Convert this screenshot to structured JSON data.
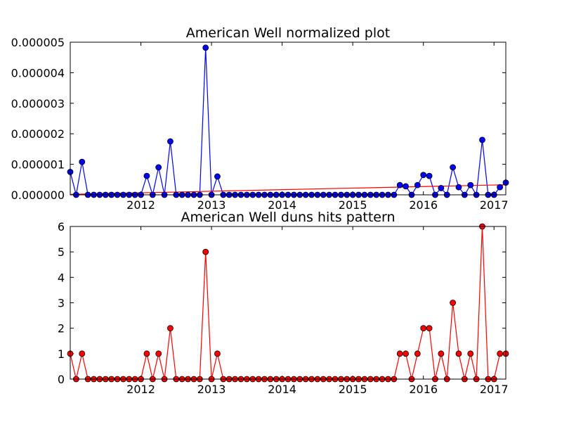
{
  "chart_data": [
    {
      "type": "line",
      "title": "American Well normalized plot",
      "x_dates": [
        "2011-01",
        "2011-02",
        "2011-03",
        "2011-04",
        "2011-05",
        "2011-06",
        "2011-07",
        "2011-08",
        "2011-09",
        "2011-10",
        "2011-11",
        "2011-12",
        "2012-01",
        "2012-02",
        "2012-03",
        "2012-04",
        "2012-05",
        "2012-06",
        "2012-07",
        "2012-08",
        "2012-09",
        "2012-10",
        "2012-11",
        "2012-12",
        "2013-01",
        "2013-02",
        "2013-03",
        "2013-04",
        "2013-05",
        "2013-06",
        "2013-07",
        "2013-08",
        "2013-09",
        "2013-10",
        "2013-11",
        "2013-12",
        "2014-01",
        "2014-02",
        "2014-03",
        "2014-04",
        "2014-05",
        "2014-06",
        "2014-07",
        "2014-08",
        "2014-09",
        "2014-10",
        "2014-11",
        "2014-12",
        "2015-01",
        "2015-02",
        "2015-03",
        "2015-04",
        "2015-05",
        "2015-06",
        "2015-07",
        "2015-08",
        "2015-09",
        "2015-10",
        "2015-11",
        "2015-12",
        "2016-01",
        "2016-02",
        "2016-03",
        "2016-04",
        "2016-05",
        "2016-06",
        "2016-07",
        "2016-08",
        "2016-09",
        "2016-10",
        "2016-11",
        "2016-12",
        "2017-01",
        "2017-02",
        "2017-03"
      ],
      "series": [
        {
          "color": "#0000ff",
          "marker_color": "#0000ff",
          "values": [
            7.5e-07,
            0,
            1.08e-06,
            0,
            0,
            0,
            0,
            0,
            0,
            0,
            0,
            0,
            0,
            6.2e-07,
            0,
            9e-07,
            0,
            1.75e-06,
            0,
            0,
            0,
            0,
            0,
            4.82e-06,
            0,
            6e-07,
            0,
            0,
            0,
            0,
            0,
            0,
            0,
            0,
            0,
            0,
            0,
            0,
            0,
            0,
            0,
            0,
            0,
            0,
            0,
            0,
            0,
            0,
            0,
            0,
            0,
            0,
            0,
            0,
            0,
            0,
            3.2e-07,
            2.8e-07,
            0,
            3.2e-07,
            6.5e-07,
            6.2e-07,
            0,
            2.2e-07,
            0,
            9e-07,
            2.5e-07,
            0,
            3.2e-07,
            0,
            1.8e-06,
            0,
            0,
            2.5e-07,
            4e-07
          ]
        }
      ],
      "trendline": {
        "color": "#ff0000",
        "start": 1.5e-08,
        "end": 3.3e-07
      },
      "ylim": [
        0,
        5e-06
      ],
      "yticks": [
        "0.000000",
        "0.000001",
        "0.000002",
        "0.000003",
        "0.000004",
        "0.000005"
      ],
      "xticks": [
        "2012",
        "2013",
        "2014",
        "2015",
        "2016",
        "2017"
      ],
      "xlim": [
        "2011-01",
        "2017-03"
      ],
      "grid": false
    },
    {
      "type": "line",
      "title": "American Well duns hits pattern",
      "x_dates": [
        "2011-01",
        "2011-02",
        "2011-03",
        "2011-04",
        "2011-05",
        "2011-06",
        "2011-07",
        "2011-08",
        "2011-09",
        "2011-10",
        "2011-11",
        "2011-12",
        "2012-01",
        "2012-02",
        "2012-03",
        "2012-04",
        "2012-05",
        "2012-06",
        "2012-07",
        "2012-08",
        "2012-09",
        "2012-10",
        "2012-11",
        "2012-12",
        "2013-01",
        "2013-02",
        "2013-03",
        "2013-04",
        "2013-05",
        "2013-06",
        "2013-07",
        "2013-08",
        "2013-09",
        "2013-10",
        "2013-11",
        "2013-12",
        "2014-01",
        "2014-02",
        "2014-03",
        "2014-04",
        "2014-05",
        "2014-06",
        "2014-07",
        "2014-08",
        "2014-09",
        "2014-10",
        "2014-11",
        "2014-12",
        "2015-01",
        "2015-02",
        "2015-03",
        "2015-04",
        "2015-05",
        "2015-06",
        "2015-07",
        "2015-08",
        "2015-09",
        "2015-10",
        "2015-11",
        "2015-12",
        "2016-01",
        "2016-02",
        "2016-03",
        "2016-04",
        "2016-05",
        "2016-06",
        "2016-07",
        "2016-08",
        "2016-09",
        "2016-10",
        "2016-11",
        "2016-12",
        "2017-01",
        "2017-02",
        "2017-03"
      ],
      "series": [
        {
          "color": "#ff0000",
          "marker_color": "#ff0000",
          "values": [
            1,
            0,
            1,
            0,
            0,
            0,
            0,
            0,
            0,
            0,
            0,
            0,
            0,
            1,
            0,
            1,
            0,
            2,
            0,
            0,
            0,
            0,
            0,
            5,
            0,
            1,
            0,
            0,
            0,
            0,
            0,
            0,
            0,
            0,
            0,
            0,
            0,
            0,
            0,
            0,
            0,
            0,
            0,
            0,
            0,
            0,
            0,
            0,
            0,
            0,
            0,
            0,
            0,
            0,
            0,
            0,
            1,
            1,
            0,
            1,
            2,
            2,
            0,
            1,
            0,
            3,
            1,
            0,
            1,
            0,
            6,
            0,
            0,
            1,
            1
          ]
        }
      ],
      "ylim": [
        0,
        6
      ],
      "yticks": [
        "0",
        "1",
        "2",
        "3",
        "4",
        "5",
        "6"
      ],
      "xticks": [
        "2012",
        "2013",
        "2014",
        "2015",
        "2016",
        "2017"
      ],
      "xlim": [
        "2011-01",
        "2017-03"
      ],
      "grid": false
    }
  ]
}
